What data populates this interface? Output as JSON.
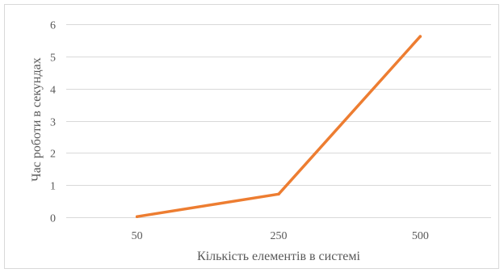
{
  "chart_data": {
    "type": "line",
    "title": "",
    "xlabel": "Кількість елементів в системі",
    "ylabel": "Час роботи в секундах",
    "categories": [
      "50",
      "250",
      "500"
    ],
    "series": [
      {
        "values": [
          0.02,
          0.72,
          5.62
        ]
      }
    ],
    "ylim": [
      0,
      6
    ],
    "yticks": [
      "0",
      "1",
      "2",
      "3",
      "4",
      "5",
      "6"
    ],
    "grid": true,
    "legend": "none",
    "colors": {
      "line": "#ED7D31",
      "grid": "#D9D9D9",
      "text": "#595959",
      "border": "#D9D9D9"
    }
  }
}
